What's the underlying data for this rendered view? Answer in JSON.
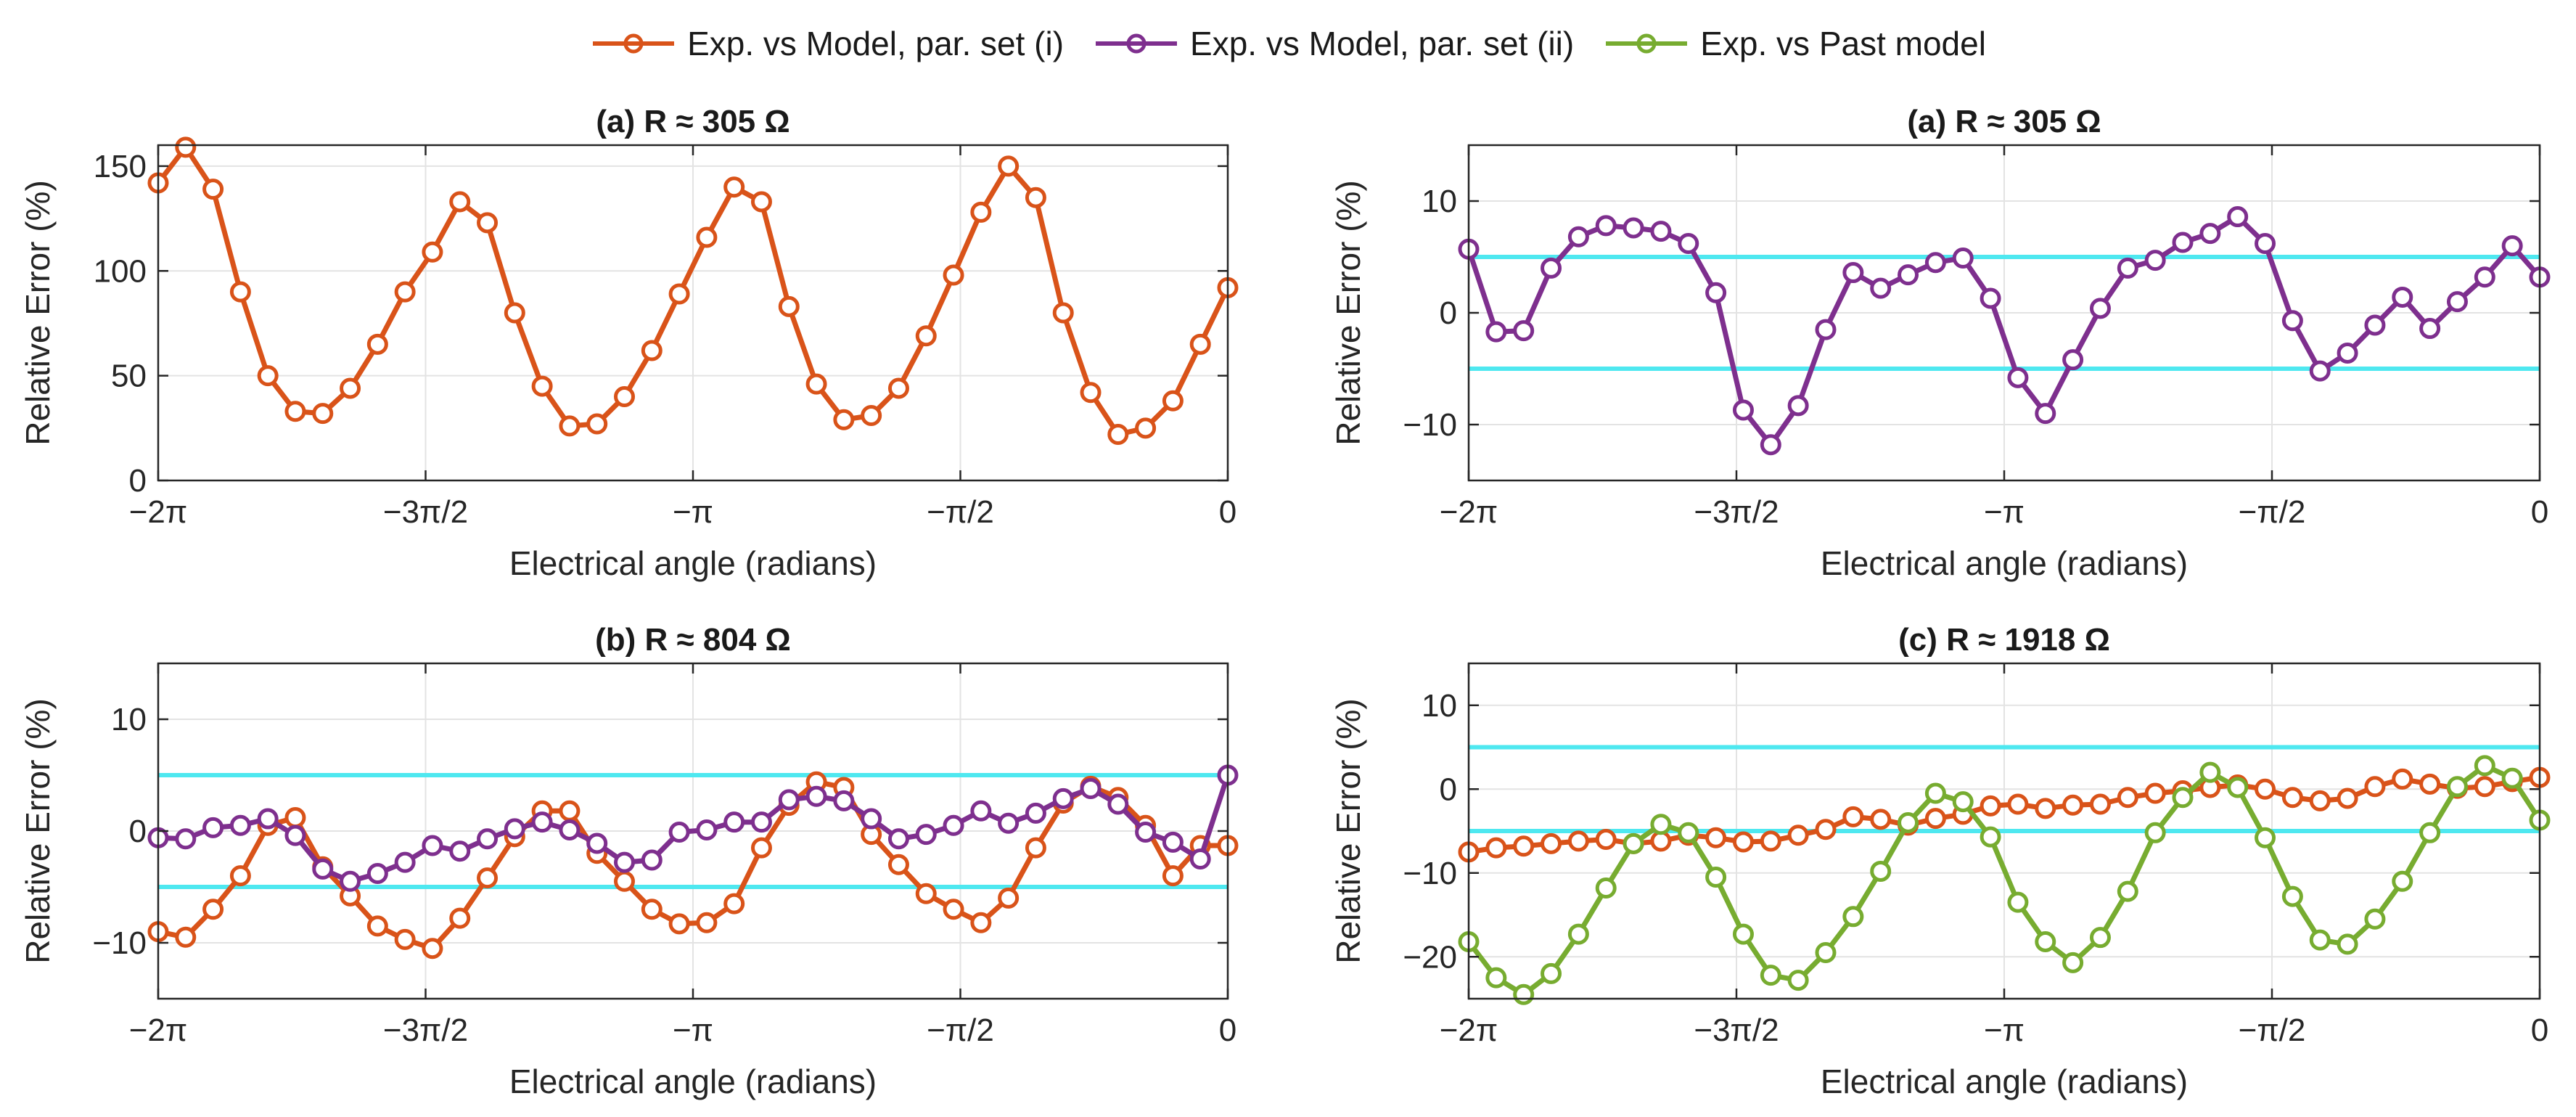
{
  "legend": [
    {
      "label": "Exp. vs Model, par. set (i)",
      "color": "#d95319"
    },
    {
      "label": "Exp. vs Model, par. set (ii)",
      "color": "#7e2f8e"
    },
    {
      "label": "Exp. vs Past model",
      "color": "#77ac30"
    }
  ],
  "chart_data": [
    {
      "type": "line",
      "title": "(a) R ≈ 305 Ω",
      "xlabel": "Electrical angle (radians)",
      "ylabel": "Relative Error (%)",
      "xlim": [
        -6.2832,
        0
      ],
      "ylim": [
        0,
        160
      ],
      "xticks": [
        -6.2832,
        -4.7124,
        -3.1416,
        -1.5708,
        0
      ],
      "xtick_labels": [
        "−2π",
        "−3π/2",
        "−π",
        "−π/2",
        "0"
      ],
      "yticks": [
        0,
        50,
        100,
        150
      ],
      "ytick_labels": [
        "0",
        "50",
        "100",
        "150"
      ],
      "grid": true,
      "threshold_lines": [],
      "series": [
        {
          "name": "Exp. vs Model, par. set (i)",
          "color": "#d95319",
          "values": [
            142,
            159,
            139,
            90,
            50,
            33,
            32,
            44,
            65,
            90,
            109,
            133,
            123,
            80,
            45,
            26,
            27,
            40,
            62,
            89,
            116,
            140,
            133,
            83,
            46,
            29,
            31,
            44,
            69,
            98,
            128,
            150,
            135,
            80,
            42,
            22,
            25,
            38,
            65,
            92
          ]
        }
      ]
    },
    {
      "type": "line",
      "title": "(a) R ≈ 305 Ω",
      "xlabel": "Electrical angle (radians)",
      "ylabel": "Relative Error (%)",
      "xlim": [
        -6.2832,
        0
      ],
      "ylim": [
        -15,
        15
      ],
      "xticks": [
        -6.2832,
        -4.7124,
        -3.1416,
        -1.5708,
        0
      ],
      "xtick_labels": [
        "−2π",
        "−3π/2",
        "−π",
        "−π/2",
        "0"
      ],
      "yticks": [
        -10,
        0,
        10
      ],
      "ytick_labels": [
        "−10",
        "0",
        "10"
      ],
      "grid": true,
      "threshold_lines": [
        5,
        -5
      ],
      "series": [
        {
          "name": "Exp. vs Model, par. set (ii)",
          "color": "#7e2f8e",
          "values": [
            5.7,
            -1.7,
            -1.6,
            4.0,
            6.8,
            7.8,
            7.6,
            7.3,
            6.2,
            1.8,
            -8.7,
            -11.8,
            -8.3,
            -1.5,
            3.6,
            2.2,
            3.4,
            4.5,
            4.9,
            1.3,
            -5.8,
            -9.0,
            -4.2,
            0.4,
            4.0,
            4.7,
            6.3,
            7.1,
            8.6,
            6.2,
            -0.7,
            -5.2,
            -3.6,
            -1.1,
            1.4,
            -1.4,
            1.0,
            3.2,
            6.0,
            3.2
          ]
        }
      ]
    },
    {
      "type": "line",
      "title": "(b) R ≈ 804 Ω",
      "xlabel": "Electrical angle (radians)",
      "ylabel": "Relative Error (%)",
      "xlim": [
        -6.2832,
        0
      ],
      "ylim": [
        -15,
        15
      ],
      "xticks": [
        -6.2832,
        -4.7124,
        -3.1416,
        -1.5708,
        0
      ],
      "xtick_labels": [
        "−2π",
        "−3π/2",
        "−π",
        "−π/2",
        "0"
      ],
      "yticks": [
        -10,
        0,
        10
      ],
      "ytick_labels": [
        "−10",
        "0",
        "10"
      ],
      "grid": true,
      "threshold_lines": [
        5,
        -5
      ],
      "series": [
        {
          "name": "Exp. vs Model, par. set (i)",
          "color": "#d95319",
          "values": [
            -9.0,
            -9.5,
            -7.0,
            -4.0,
            0.5,
            1.2,
            -3.2,
            -5.8,
            -8.5,
            -9.7,
            -10.5,
            -7.8,
            -4.2,
            -0.5,
            1.8,
            1.8,
            -2.0,
            -4.5,
            -7.0,
            -8.3,
            -8.2,
            -6.5,
            -1.5,
            2.3,
            4.4,
            3.9,
            -0.3,
            -3.0,
            -5.6,
            -7.0,
            -8.2,
            -6.0,
            -1.5,
            2.5,
            4.0,
            3.0,
            0.5,
            -4.0,
            -1.3,
            -1.3
          ]
        },
        {
          "name": "Exp. vs Model, par. set (ii)",
          "color": "#7e2f8e",
          "values": [
            -0.6,
            -0.7,
            0.3,
            0.5,
            1.1,
            -0.4,
            -3.4,
            -4.5,
            -3.8,
            -2.8,
            -1.3,
            -1.8,
            -0.7,
            0.2,
            0.8,
            0.1,
            -1.1,
            -2.8,
            -2.6,
            -0.1,
            0.1,
            0.8,
            0.8,
            2.8,
            3.1,
            2.7,
            1.1,
            -0.7,
            -0.3,
            0.5,
            1.8,
            0.7,
            1.6,
            2.9,
            3.8,
            2.4,
            -0.1,
            -1.0,
            -2.5,
            5.0
          ]
        }
      ]
    },
    {
      "type": "line",
      "title": "(c) R ≈ 1918 Ω",
      "xlabel": "Electrical angle (radians)",
      "ylabel": "Relative Error (%)",
      "xlim": [
        -6.2832,
        0
      ],
      "ylim": [
        -25,
        15
      ],
      "xticks": [
        -6.2832,
        -4.7124,
        -3.1416,
        -1.5708,
        0
      ],
      "xtick_labels": [
        "−2π",
        "−3π/2",
        "−π",
        "−π/2",
        "0"
      ],
      "yticks": [
        -20,
        -10,
        0,
        10
      ],
      "ytick_labels": [
        "−20",
        "−10",
        "0",
        "10"
      ],
      "grid": true,
      "threshold_lines": [
        5,
        -5
      ],
      "series": [
        {
          "name": "Exp. vs Model, par. set (i)",
          "color": "#d95319",
          "values": [
            -7.5,
            -7.0,
            -6.8,
            -6.5,
            -6.2,
            -6.0,
            -6.5,
            -6.2,
            -5.5,
            -5.8,
            -6.3,
            -6.2,
            -5.5,
            -4.8,
            -3.3,
            -3.6,
            -4.3,
            -3.5,
            -3.0,
            -2.0,
            -1.8,
            -2.3,
            -1.9,
            -1.8,
            -1.0,
            -0.5,
            -0.2,
            0.2,
            0.5,
            0.0,
            -1.0,
            -1.4,
            -1.1,
            0.3,
            1.2,
            0.6,
            0.1,
            0.3,
            0.9,
            1.4
          ]
        },
        {
          "name": "Exp. vs Past model",
          "color": "#77ac30",
          "values": [
            -18.2,
            -22.5,
            -24.5,
            -22.0,
            -17.3,
            -11.8,
            -6.5,
            -4.2,
            -5.2,
            -10.5,
            -17.3,
            -22.2,
            -22.8,
            -19.5,
            -15.2,
            -9.8,
            -4.0,
            -0.5,
            -1.5,
            -5.7,
            -13.5,
            -18.2,
            -20.7,
            -17.7,
            -12.2,
            -5.2,
            -1.0,
            2.0,
            0.2,
            -5.8,
            -12.8,
            -18.0,
            -18.5,
            -15.5,
            -11.0,
            -5.2,
            0.3,
            2.8,
            1.3,
            -3.7
          ]
        }
      ]
    }
  ]
}
